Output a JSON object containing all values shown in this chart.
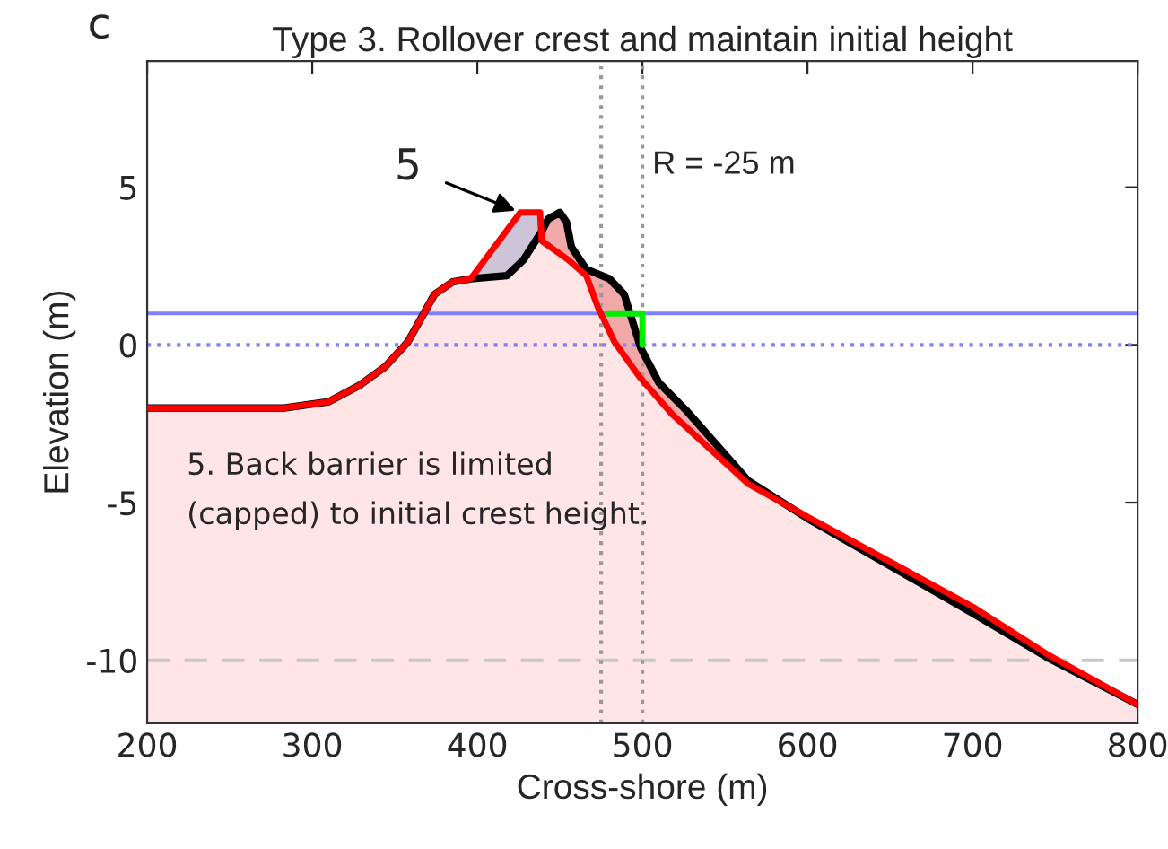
{
  "chart_data": {
    "type": "line",
    "title": "Type 3. Rollover crest and maintain initial height",
    "xlabel": "Cross-shore (m)",
    "ylabel": "Elevation (m)",
    "xlim": [
      200,
      800
    ],
    "ylim": [
      -12,
      9
    ],
    "xticks": [
      200,
      300,
      400,
      500,
      600,
      700,
      800
    ],
    "yticks": [
      -10,
      -5,
      0,
      5
    ],
    "grid": false,
    "series": [
      {
        "color": "#000000",
        "x": [
          200,
          283,
          310,
          328,
          344,
          358,
          374,
          385,
          396,
          418,
          428,
          439,
          443,
          450,
          454,
          457,
          466,
          480,
          489,
          499,
          510,
          527,
          564,
          600,
          700,
          745,
          800
        ],
        "values": [
          -2.0,
          -2.0,
          -1.8,
          -1.3,
          -0.7,
          0.1,
          1.6,
          2.0,
          2.1,
          2.2,
          2.7,
          3.6,
          4.0,
          4.2,
          3.9,
          3.1,
          2.4,
          2.1,
          1.6,
          -0.1,
          -1.2,
          -2.1,
          -4.3,
          -5.5,
          -8.5,
          -9.9,
          -11.4
        ]
      },
      {
        "type": "area",
        "color": "#ff0000",
        "x": [
          200,
          283,
          310,
          328,
          344,
          358,
          374,
          385,
          396,
          426,
          438,
          439,
          455,
          466,
          473,
          483,
          498,
          518,
          564,
          600,
          700,
          745,
          800
        ],
        "values": [
          -2.0,
          -2.0,
          -1.8,
          -1.3,
          -0.7,
          0.1,
          1.6,
          2.0,
          2.1,
          4.2,
          4.2,
          3.3,
          2.7,
          2.2,
          1.2,
          0.1,
          -1.0,
          -2.2,
          -4.4,
          -5.45,
          -8.3,
          -9.8,
          -11.4
        ]
      },
      {
        "color": "#00ee00",
        "x": [
          500,
          500,
          479
        ],
        "values": [
          0.0,
          1.0,
          1.0
        ]
      }
    ],
    "ref_lines": [
      {
        "axis": "y",
        "value": 1,
        "color": "#8080ff",
        "line_style": "solid"
      },
      {
        "axis": "y",
        "value": 0,
        "color": "#8080ff",
        "line_style": "dotted"
      },
      {
        "axis": "y",
        "value": -10,
        "color": "#c8c8c8",
        "line_style": "dashed"
      },
      {
        "axis": "x",
        "value": 475,
        "color": "#999999",
        "line_style": "dotted"
      },
      {
        "axis": "x",
        "value": 500,
        "color": "#999999",
        "line_style": "dotted"
      }
    ],
    "annotations": [
      "c",
      "R = -25 m",
      "5. Back barrier is limited\n(capped) to initial crest height.",
      {
        "text": "5",
        "x": 426,
        "y": 4.2
      }
    ]
  }
}
